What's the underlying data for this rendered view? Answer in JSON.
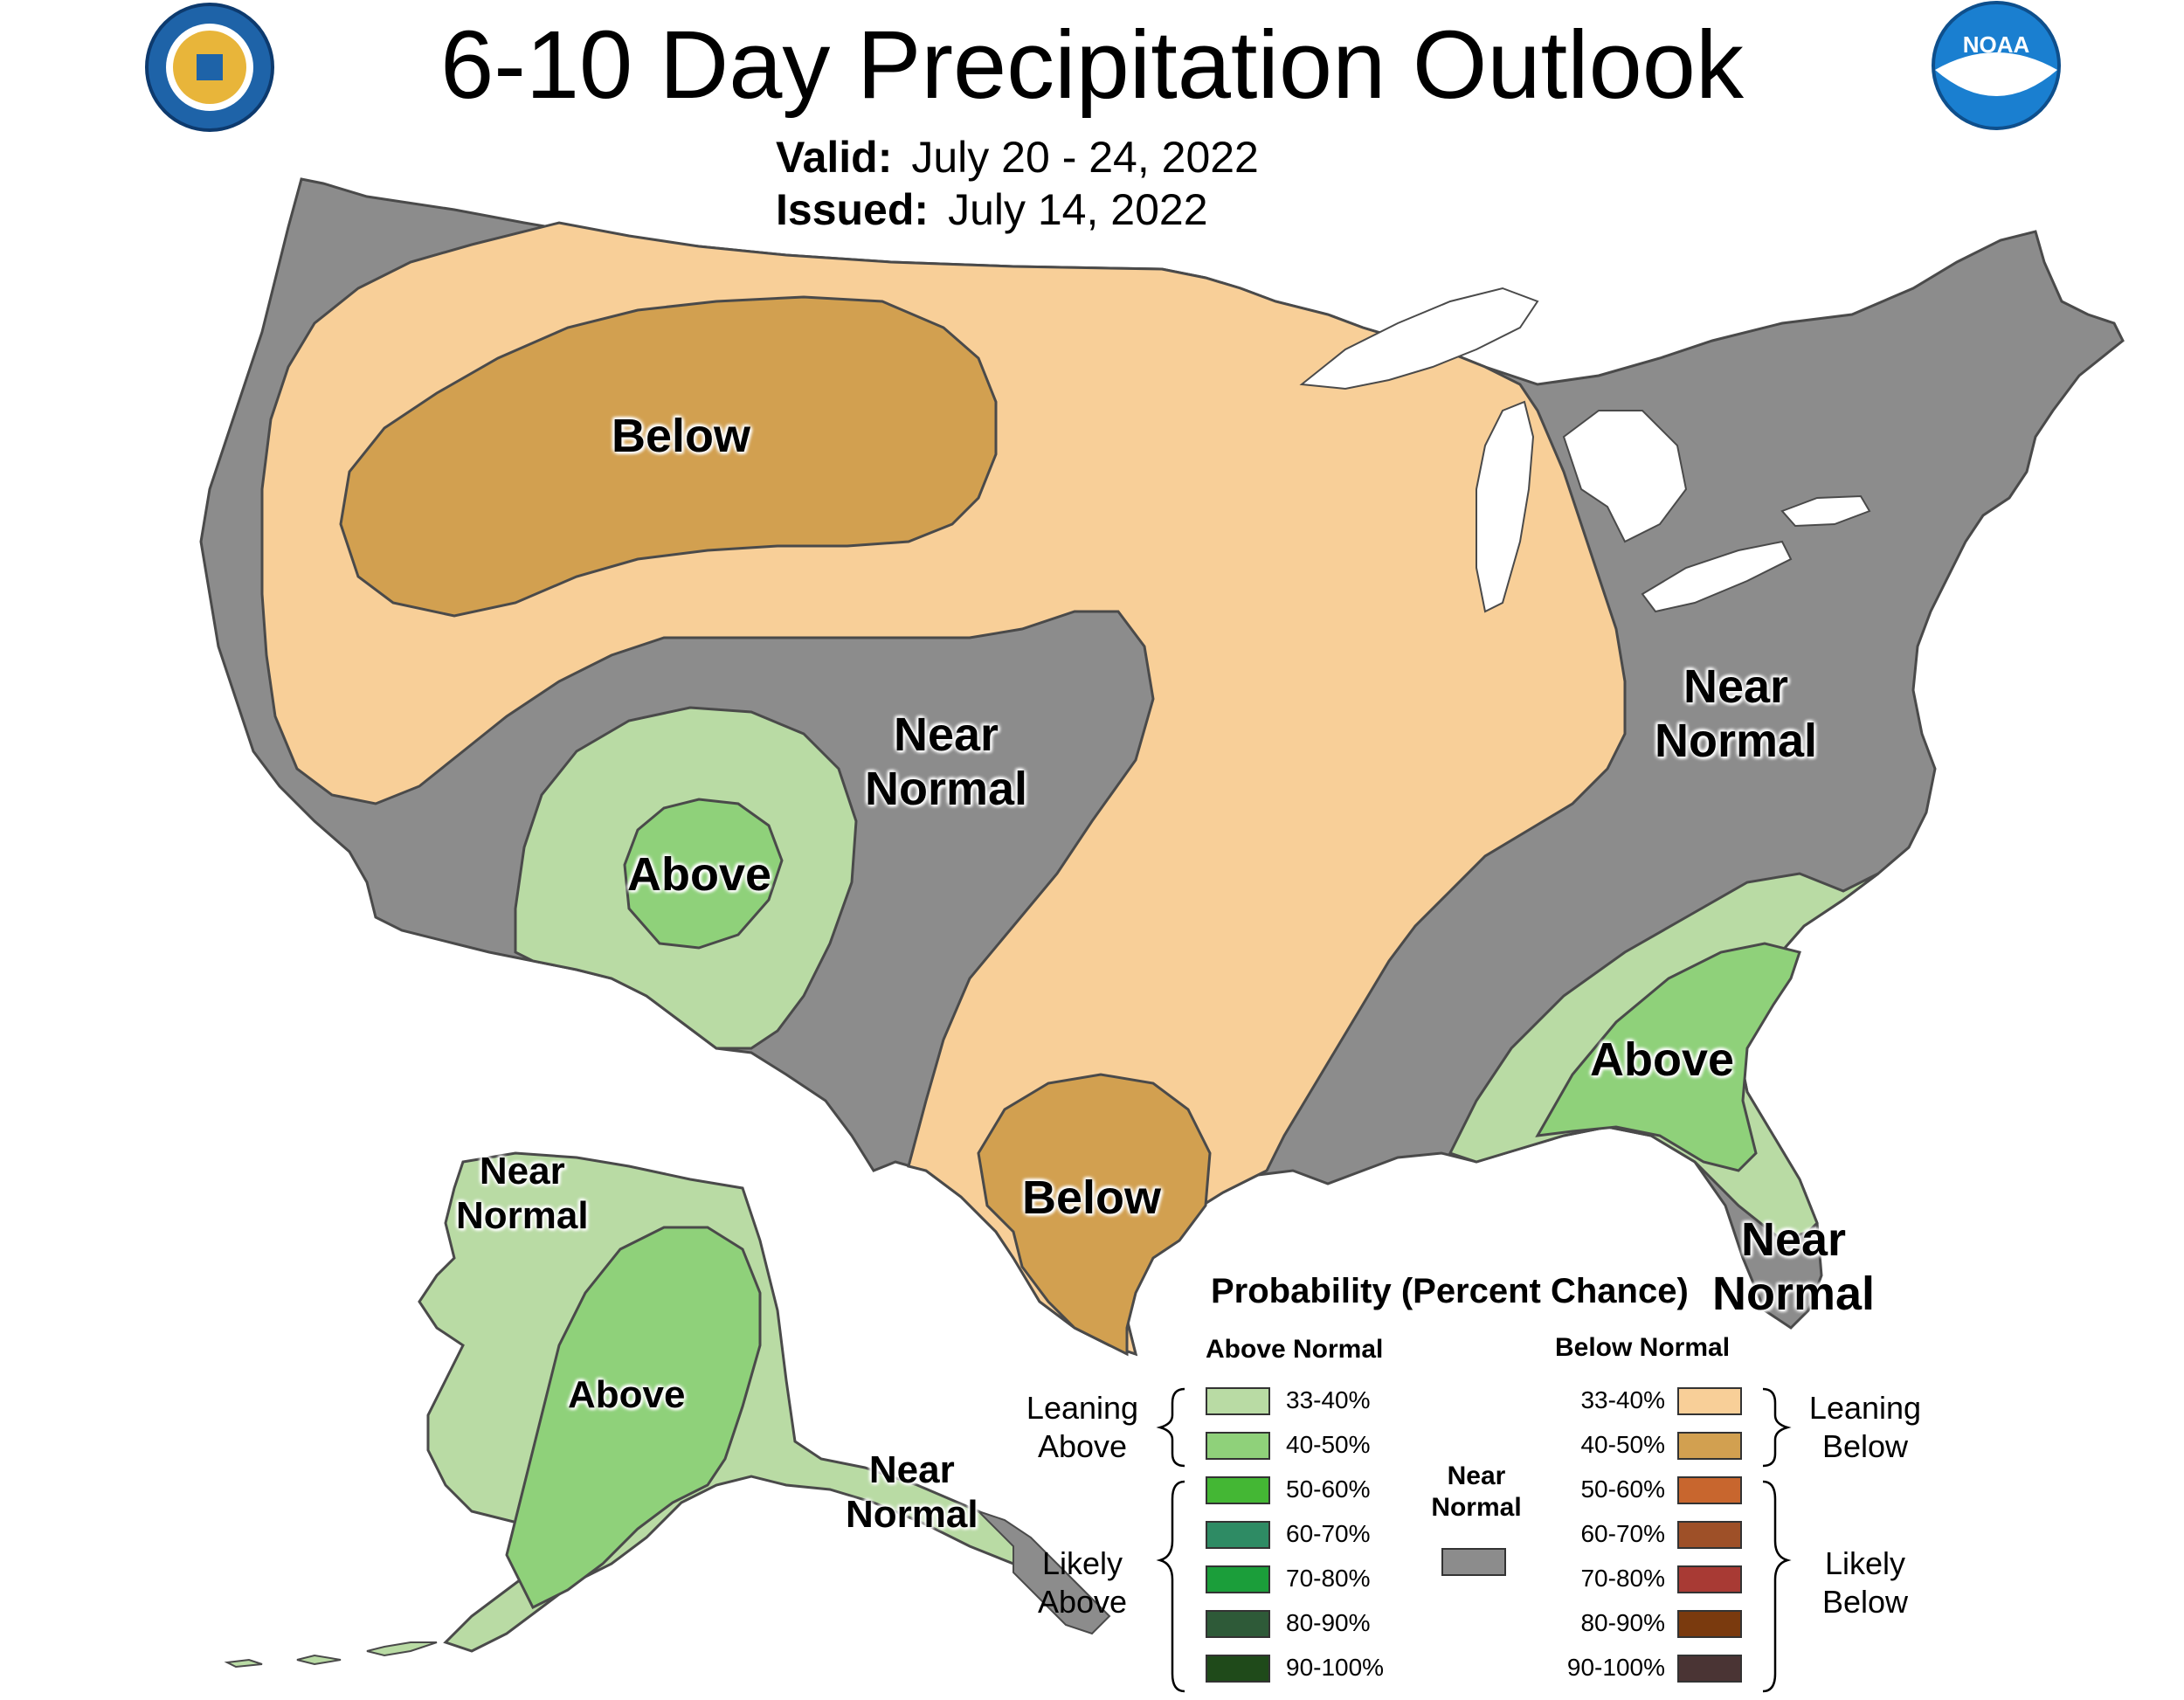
{
  "title": "6-10 Day Precipitation Outlook",
  "valid_label": "Valid:",
  "valid_value": "July 20 - 24, 2022",
  "issued_label": "Issued:",
  "issued_value": "July 14, 2022",
  "colors": {
    "near_normal": "#8c8c8c",
    "below_33_40": "#f8cf98",
    "below_40_50": "#d2a050",
    "above_33_40": "#b9dba4",
    "above_40_50": "#8fd17a",
    "lake": "#ffffff",
    "border": "#4a4a4a"
  },
  "regions": {
    "west_below": "Below",
    "texas_below": "Below",
    "central_near_1": "Near",
    "central_near_2": "Normal",
    "southwest_above": "Above",
    "northeast_near_1": "Near",
    "northeast_near_2": "Normal",
    "southeast_above": "Above",
    "florida_near_1": "Near",
    "florida_near_2": "Normal",
    "alaska_near_1": "Near",
    "alaska_near_2": "Normal",
    "alaska_above": "Above",
    "panhandle_near_1": "Near",
    "panhandle_near_2": "Normal"
  },
  "legend": {
    "title": "Probability (Percent Chance)",
    "above_head": "Above Normal",
    "below_head": "Below Normal",
    "near_head_1": "Near",
    "near_head_2": "Normal",
    "leaning_above_1": "Leaning",
    "leaning_above_2": "Above",
    "likely_above_1": "Likely",
    "likely_above_2": "Above",
    "leaning_below_1": "Leaning",
    "leaning_below_2": "Below",
    "likely_below_1": "Likely",
    "likely_below_2": "Below",
    "above_rows": [
      {
        "label": "33-40%",
        "color": "#b9dba4"
      },
      {
        "label": "40-50%",
        "color": "#8fd17a"
      },
      {
        "label": "50-60%",
        "color": "#44b734"
      },
      {
        "label": "60-70%",
        "color": "#2e8b64"
      },
      {
        "label": "70-80%",
        "color": "#1b9e3a"
      },
      {
        "label": "80-90%",
        "color": "#2e5a38"
      },
      {
        "label": "90-100%",
        "color": "#1f4a1a"
      }
    ],
    "below_rows": [
      {
        "label": "33-40%",
        "color": "#f8cf98"
      },
      {
        "label": "40-50%",
        "color": "#d2a050"
      },
      {
        "label": "50-60%",
        "color": "#c8662e"
      },
      {
        "label": "60-70%",
        "color": "#9e5028"
      },
      {
        "label": "70-80%",
        "color": "#a83a34"
      },
      {
        "label": "80-90%",
        "color": "#7a3a0e"
      },
      {
        "label": "90-100%",
        "color": "#4a3434"
      }
    ]
  }
}
